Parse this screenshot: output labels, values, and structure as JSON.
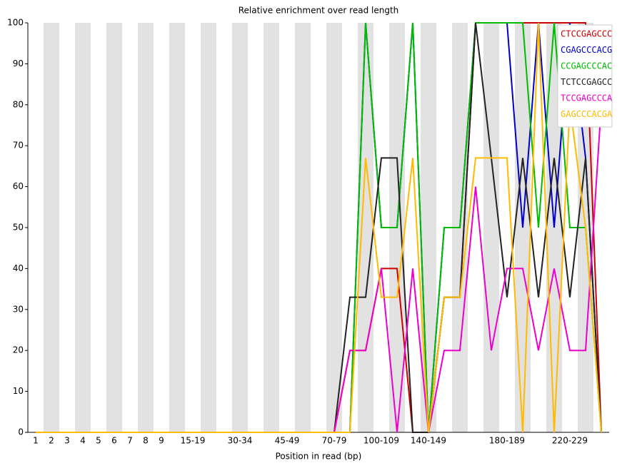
{
  "chart_data": {
    "type": "line",
    "title": "Relative enrichment over read length",
    "x_label": "Position in read (bp)",
    "categories": [
      "1",
      "2",
      "3",
      "4",
      "5",
      "6",
      "7",
      "8",
      "9",
      null,
      "15-19",
      null,
      null,
      "30-34",
      null,
      null,
      "45-49",
      null,
      null,
      "70-79",
      null,
      null,
      "100-109",
      null,
      null,
      "140-149",
      null,
      null,
      null,
      null,
      "180-189",
      null,
      null,
      null,
      "220-229",
      null,
      null
    ],
    "ylim": [
      0,
      100
    ],
    "yticks": [
      0,
      10,
      20,
      30,
      40,
      50,
      60,
      70,
      80,
      90,
      100
    ],
    "legend": "top-right",
    "series": [
      {
        "name": "CTCCGAGCCC",
        "color": "#cc0000",
        "values": [
          0,
          0,
          0,
          0,
          0,
          0,
          0,
          0,
          0,
          0,
          0,
          0,
          0,
          0,
          0,
          0,
          0,
          0,
          0,
          0,
          20,
          20,
          40,
          40,
          0,
          0,
          33,
          33,
          100,
          100,
          100,
          100,
          100,
          100,
          100,
          100,
          0
        ]
      },
      {
        "name": "CGAGCCCACG",
        "color": "#0000cc",
        "values": [
          0,
          0,
          0,
          0,
          0,
          0,
          0,
          0,
          0,
          0,
          0,
          0,
          0,
          0,
          0,
          0,
          0,
          0,
          0,
          0,
          0,
          100,
          50,
          50,
          100,
          0,
          50,
          50,
          100,
          100,
          100,
          50,
          100,
          50,
          100,
          67,
          0
        ]
      },
      {
        "name": "CCGAGCCCAC",
        "color": "#00bb00",
        "values": [
          0,
          0,
          0,
          0,
          0,
          0,
          0,
          0,
          0,
          0,
          0,
          0,
          0,
          0,
          0,
          0,
          0,
          0,
          0,
          0,
          0,
          100,
          50,
          50,
          100,
          0,
          50,
          50,
          100,
          100,
          100,
          100,
          50,
          100,
          50,
          50,
          0
        ]
      },
      {
        "name": "TCTCCGAGCC",
        "color": "#222222",
        "values": [
          0,
          0,
          0,
          0,
          0,
          0,
          0,
          0,
          0,
          0,
          0,
          0,
          0,
          0,
          0,
          0,
          0,
          0,
          0,
          0,
          33,
          33,
          67,
          67,
          0,
          0,
          33,
          33,
          100,
          67,
          33,
          67,
          33,
          67,
          33,
          67,
          0
        ]
      },
      {
        "name": "TCCGAGCCCA",
        "color": "#ee00cc",
        "values": [
          0,
          0,
          0,
          0,
          0,
          0,
          0,
          0,
          0,
          0,
          0,
          0,
          0,
          0,
          0,
          0,
          0,
          0,
          0,
          0,
          20,
          20,
          40,
          0,
          40,
          0,
          20,
          20,
          60,
          20,
          40,
          40,
          20,
          40,
          20,
          20,
          80
        ]
      },
      {
        "name": "GAGCCCACGA",
        "color": "#ffbb00",
        "values": [
          0,
          0,
          0,
          0,
          0,
          0,
          0,
          0,
          0,
          0,
          0,
          0,
          0,
          0,
          0,
          0,
          0,
          0,
          0,
          0,
          0,
          67,
          33,
          33,
          67,
          0,
          33,
          33,
          67,
          67,
          67,
          0,
          100,
          0,
          80,
          50,
          0
        ]
      }
    ]
  }
}
